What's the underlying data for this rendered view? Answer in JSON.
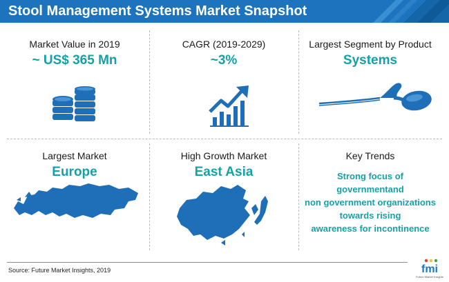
{
  "header": {
    "title": "Stool Management Systems Market Snapshot"
  },
  "cells": {
    "market_value": {
      "label": "Market Value in 2019",
      "value": "~ US$ 365 Mn",
      "icon": "coin-stack-icon"
    },
    "cagr": {
      "label": "CAGR (2019-2029)",
      "value": "~3%",
      "icon": "growth-chart-icon"
    },
    "segment": {
      "label": "Largest Segment by Product",
      "value": "Systems",
      "icon": "catheter-device-icon"
    },
    "largest_market": {
      "label": "Largest Market",
      "value": "Europe",
      "icon": "europe-map-icon"
    },
    "growth_market": {
      "label": "High Growth Market",
      "value": "East Asia",
      "icon": "east-asia-map-icon"
    },
    "trends": {
      "label": "Key Trends",
      "lines": [
        "Strong focus of",
        "governmentand",
        "non government organizations",
        "towards rising",
        "awareness for incontinence"
      ]
    }
  },
  "footer": {
    "source": "Source: Future Market Insights, 2019",
    "logo_text": "fmi",
    "logo_tagline": "Future Market Insights"
  },
  "colors": {
    "header_blue": "#1b74bd",
    "accent_teal": "#14a1a7",
    "icon_blue": "#1f6fb8"
  }
}
